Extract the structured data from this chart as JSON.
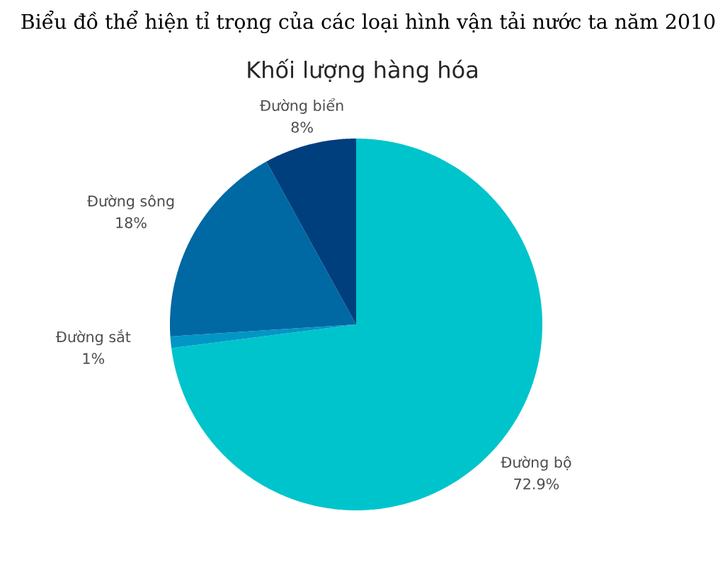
{
  "chart_data": {
    "type": "pie",
    "title": "Biểu đồ thể hiện tỉ trọng của các loại hình vận tải nước ta năm 2010",
    "subtitle": "Khối lượng hàng hóa",
    "categories": [
      "Đường bộ",
      "Đường sắt",
      "Đường sông",
      "Đường biển"
    ],
    "values": [
      72.9,
      1,
      18,
      8
    ],
    "colors": [
      "#00c4cc",
      "#0096c6",
      "#0068a2",
      "#003f7e"
    ],
    "value_labels": [
      "72.9%",
      "1%",
      "18%",
      "8%"
    ]
  }
}
